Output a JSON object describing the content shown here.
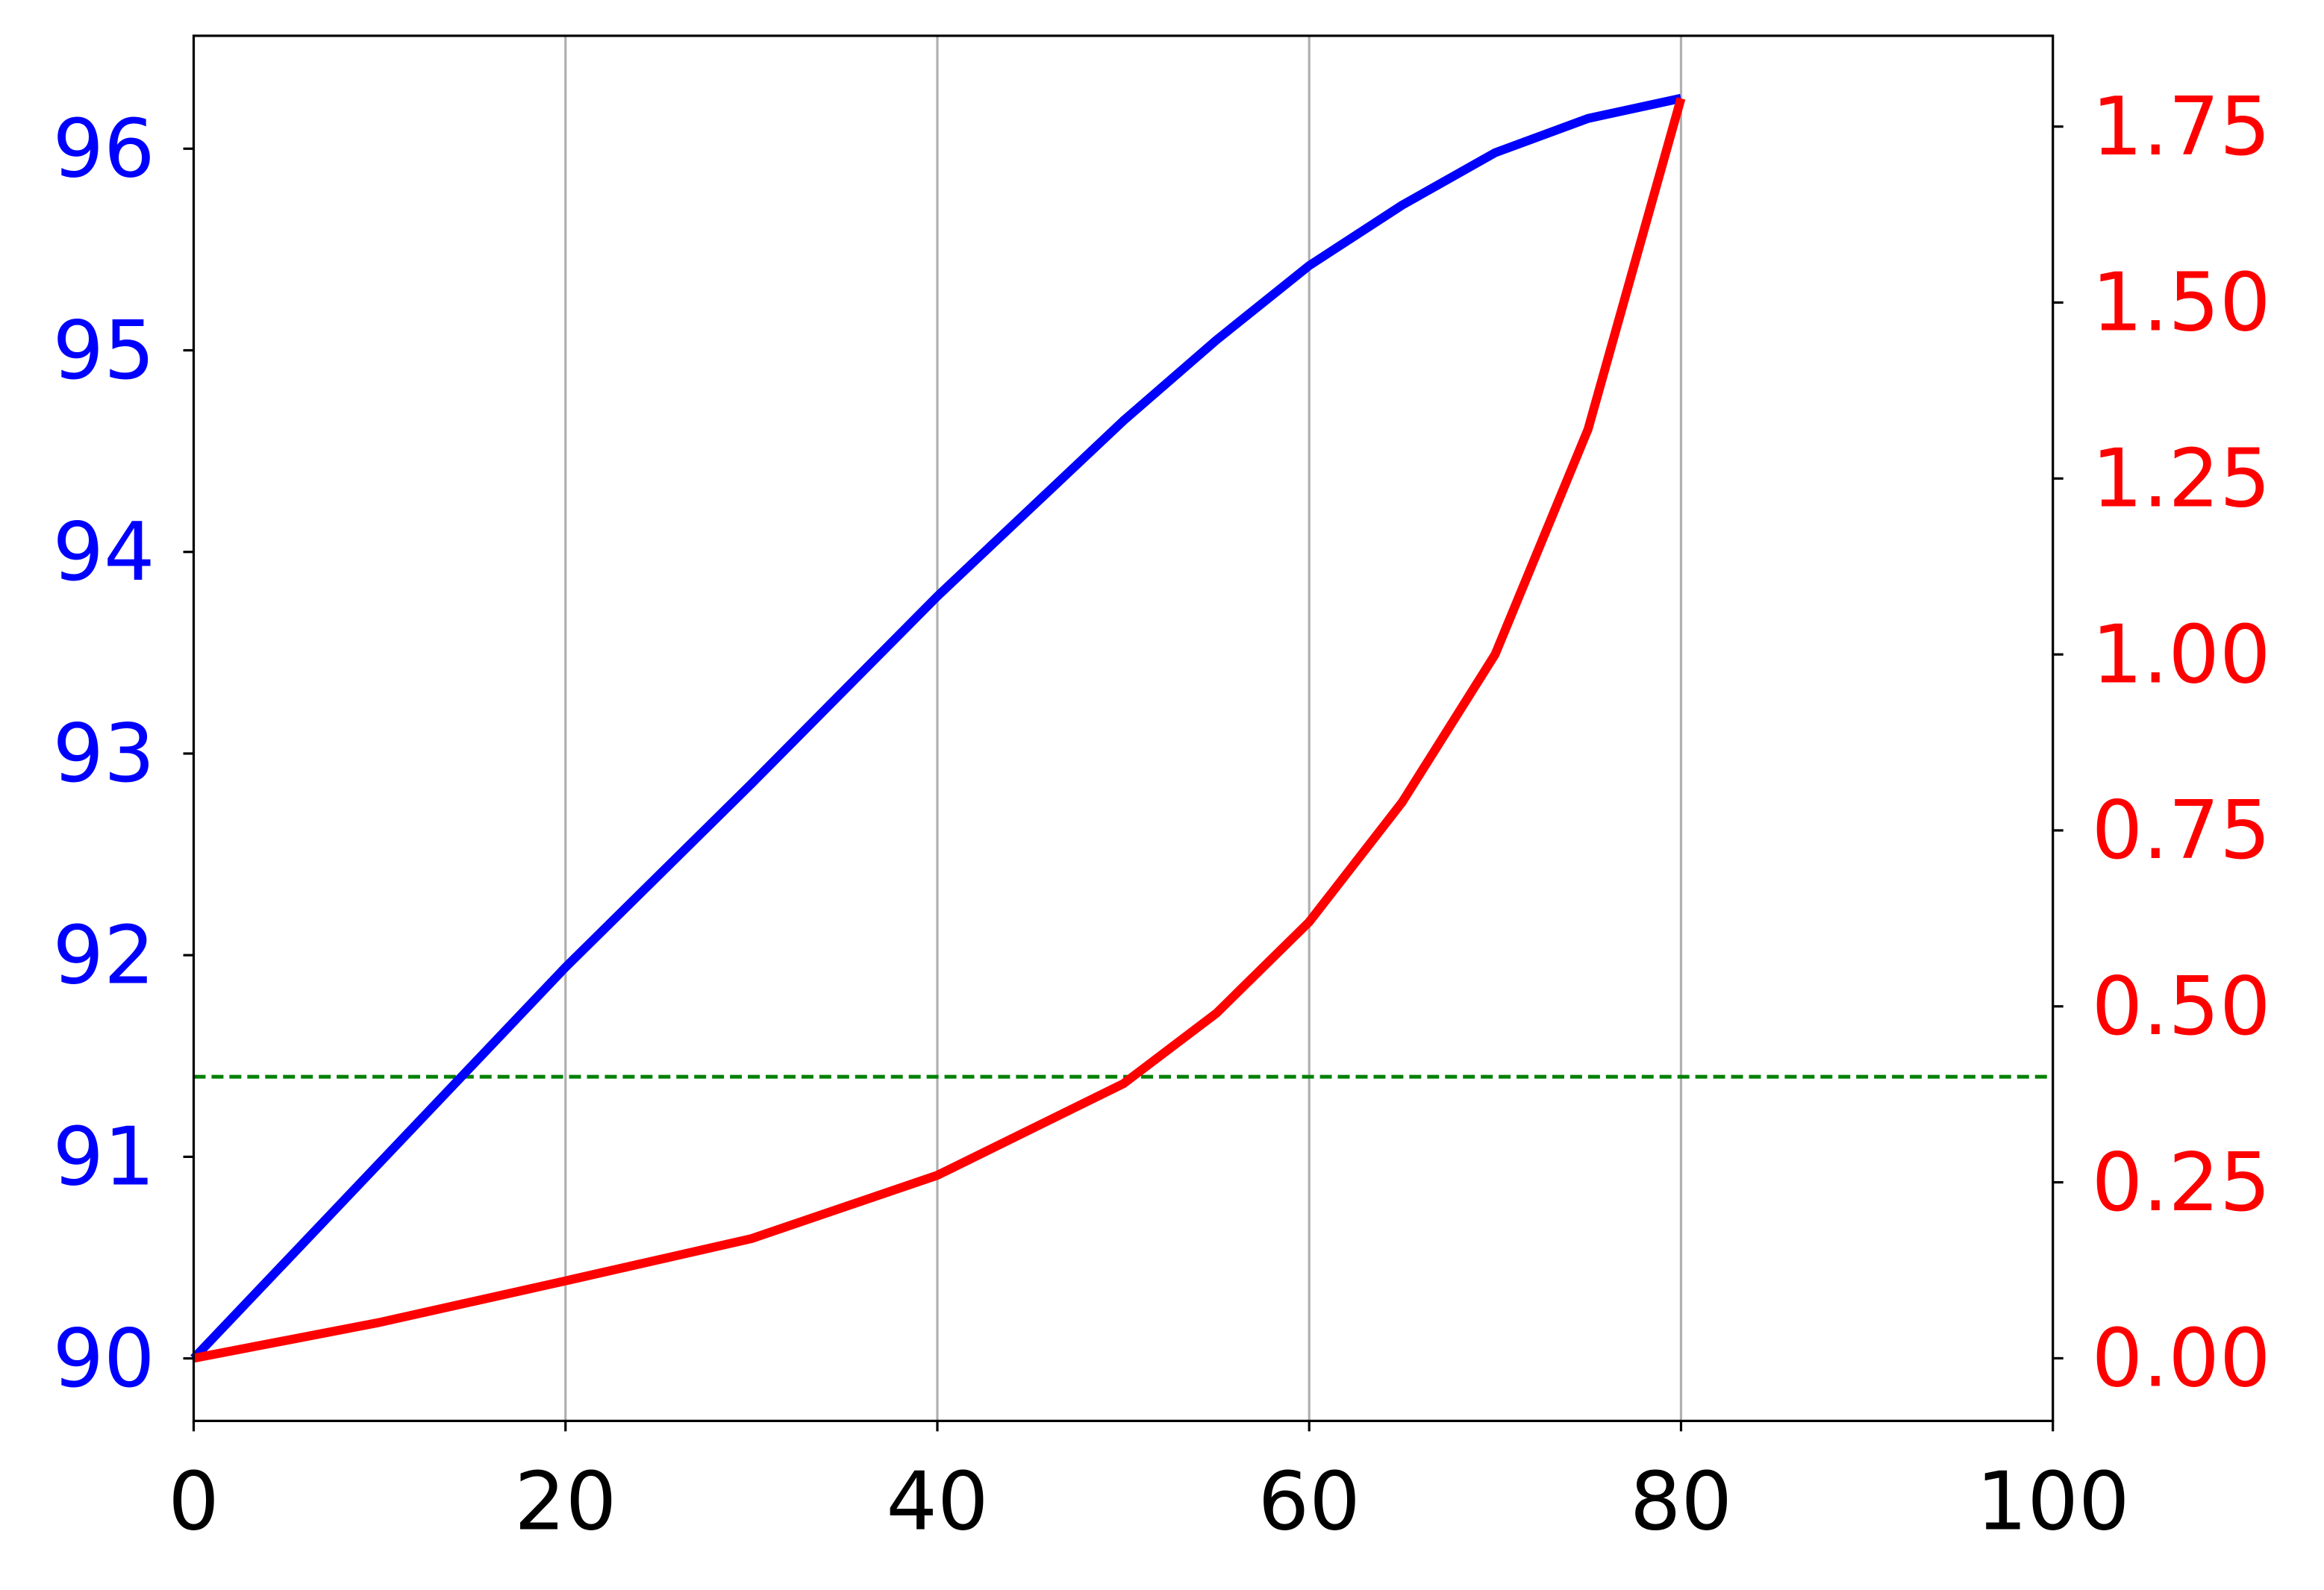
{
  "chart_data": {
    "type": "line",
    "x": [
      0,
      10,
      20,
      30,
      40,
      50,
      55,
      60,
      65,
      70,
      75,
      80
    ],
    "series": [
      {
        "color": "#0000ff",
        "values": [
          90.0,
          90.97,
          91.94,
          92.85,
          93.78,
          94.65,
          95.05,
          95.42,
          95.72,
          95.98,
          96.15,
          96.25
        ]
      },
      {
        "color": "#ff0000",
        "axis": "y2",
        "values": [
          0.0,
          0.051,
          0.11,
          0.17,
          0.26,
          0.39,
          0.49,
          0.62,
          0.79,
          1.0,
          1.32,
          1.79
        ]
      }
    ],
    "xlim": [
      0,
      100
    ],
    "xticks": [
      0,
      20,
      40,
      60,
      80,
      100
    ],
    "ylim": [
      89.69,
      96.56
    ],
    "yticks": [
      90,
      91,
      92,
      93,
      94,
      95,
      96
    ],
    "ytick_color": "#0000ff",
    "y2lim": [
      -0.089,
      1.879
    ],
    "y2ticks": [
      {
        "value": 0,
        "label": "0.00"
      },
      0.25,
      {
        "value": 0.5,
        "label": "0.50"
      },
      0.75,
      {
        "value": 1,
        "label": "1.00"
      },
      1.25,
      {
        "value": 1.5,
        "label": "1.50"
      },
      1.75
    ],
    "y2tick_color": "#ff0000",
    "hline": {
      "value": 0.4,
      "axis": "y2",
      "color": "#008000"
    },
    "grid": "x"
  }
}
